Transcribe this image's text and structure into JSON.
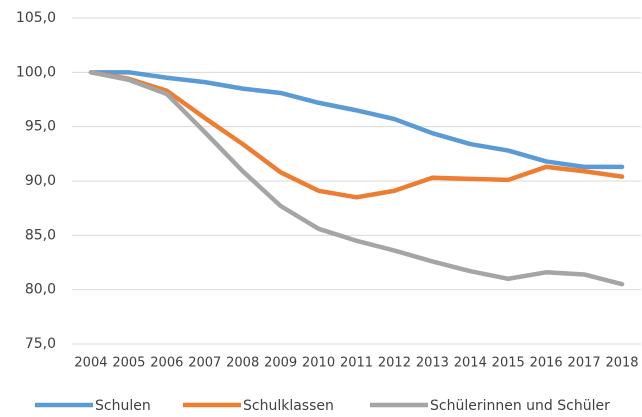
{
  "chart_data": {
    "type": "line",
    "categories": [
      "2004",
      "2005",
      "2006",
      "2007",
      "2008",
      "2009",
      "2010",
      "2011",
      "2012",
      "2013",
      "2014",
      "2015",
      "2016",
      "2017",
      "2018"
    ],
    "series": [
      {
        "name": "Schulen",
        "color": "#5b9bd5",
        "values": [
          100,
          100,
          99.5,
          99.1,
          98.5,
          98.1,
          97.2,
          96.5,
          95.7,
          94.4,
          93.4,
          92.8,
          91.8,
          91.3,
          91.3
        ]
      },
      {
        "name": "Schulklassen",
        "color": "#ed7d31",
        "values": [
          100,
          99.4,
          98.3,
          95.8,
          93.4,
          90.8,
          89.1,
          88.5,
          89.1,
          90.3,
          90.2,
          90.1,
          91.3,
          90.9,
          90.4
        ]
      },
      {
        "name": "Schülerinnen und Schüler",
        "color": "#a5a5a5",
        "values": [
          100,
          99.3,
          98.0,
          94.5,
          90.9,
          87.7,
          85.6,
          84.5,
          83.6,
          82.6,
          81.7,
          81.0,
          81.6,
          81.4,
          80.5
        ]
      }
    ],
    "ylim": [
      75,
      105
    ],
    "yticks": [
      {
        "value": 75,
        "label": "75,0"
      },
      {
        "value": 80,
        "label": "80,0"
      },
      {
        "value": 85,
        "label": "85,0"
      },
      {
        "value": 90,
        "label": "90,0"
      },
      {
        "value": 95,
        "label": "95,0"
      },
      {
        "value": 100,
        "label": "100,0"
      },
      {
        "value": 105,
        "label": "105,0"
      }
    ],
    "grid": true,
    "legend": "bottom"
  }
}
